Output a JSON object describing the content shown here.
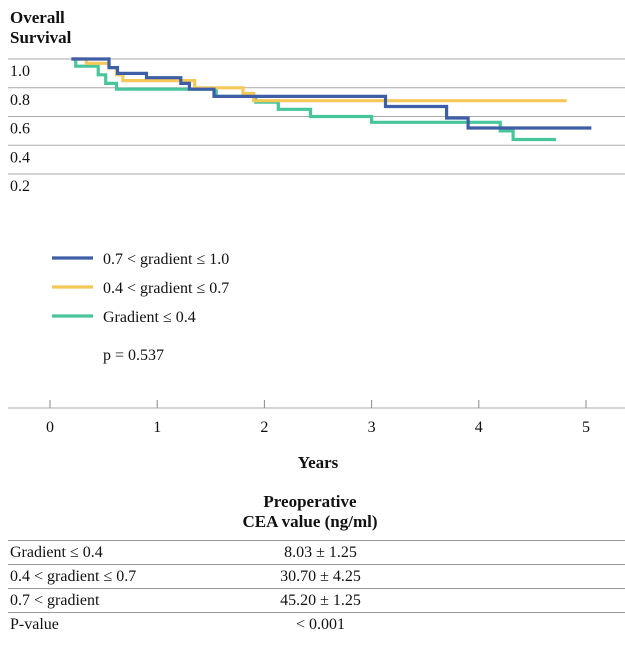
{
  "chart_data": {
    "type": "line",
    "title": "Overall Survival",
    "xlabel": "Years",
    "ylabel": "",
    "xlim": [
      0,
      5.2
    ],
    "ylim": [
      0.1,
      1.0
    ],
    "xticks": [
      0,
      1,
      2,
      3,
      4,
      5
    ],
    "yticks": [
      0.2,
      0.4,
      0.6,
      0.8,
      1.0
    ],
    "yticklabels": [
      "0.2",
      "0.4",
      "0.6",
      "0.8",
      "1.0"
    ],
    "annotation": "p = 0.537",
    "legend_position": "lower-left",
    "series": [
      {
        "name": "0.7 < gradient ≤ 1.0",
        "color": "#3f5ea8",
        "x": [
          0.2,
          0.55,
          0.55,
          0.63,
          0.63,
          0.9,
          0.9,
          1.22,
          1.22,
          1.3,
          1.3,
          1.53,
          1.53,
          3.13,
          3.13,
          3.7,
          3.7,
          3.9,
          3.9,
          5.05
        ],
        "y": [
          1.0,
          1.0,
          0.94,
          0.94,
          0.9,
          0.9,
          0.87,
          0.87,
          0.83,
          0.83,
          0.79,
          0.79,
          0.74,
          0.74,
          0.67,
          0.67,
          0.59,
          0.59,
          0.52,
          0.52
        ]
      },
      {
        "name": "0.4 < gradient ≤ 0.7",
        "color": "#f5c85a",
        "x": [
          0.2,
          0.34,
          0.34,
          0.55,
          0.55,
          0.62,
          0.62,
          0.68,
          0.68,
          1.35,
          1.35,
          1.8,
          1.8,
          1.9,
          1.9,
          4.82
        ],
        "y": [
          1.0,
          1.0,
          0.97,
          0.97,
          0.94,
          0.94,
          0.89,
          0.89,
          0.85,
          0.85,
          0.8,
          0.8,
          0.76,
          0.76,
          0.71,
          0.71
        ]
      },
      {
        "name": "Gradient ≤ 0.4",
        "color": "#48c59a",
        "x": [
          0.2,
          0.24,
          0.24,
          0.45,
          0.45,
          0.52,
          0.52,
          0.62,
          0.62,
          1.55,
          1.55,
          1.92,
          1.92,
          2.13,
          2.13,
          2.43,
          2.43,
          3.0,
          3.0,
          4.2,
          4.2,
          4.32,
          4.32,
          4.72
        ],
        "y": [
          1.0,
          1.0,
          0.95,
          0.95,
          0.89,
          0.89,
          0.83,
          0.83,
          0.79,
          0.79,
          0.74,
          0.74,
          0.7,
          0.7,
          0.65,
          0.65,
          0.6,
          0.6,
          0.56,
          0.56,
          0.5,
          0.5,
          0.44,
          0.44
        ]
      }
    ]
  },
  "table": {
    "header_line1": "Preoperative",
    "header_line2": "CEA value (ng/ml)",
    "rows": [
      {
        "label": "Gradient ≤ 0.4",
        "value": "8.03 ± 1.25"
      },
      {
        "label": "0.4 < gradient ≤ 0.7",
        "value": "30.70 ± 4.25"
      },
      {
        "label": "0.7 < gradient",
        "value": "45.20 ± 1.25"
      },
      {
        "label": "P-value",
        "value": "< 0.001"
      }
    ]
  }
}
